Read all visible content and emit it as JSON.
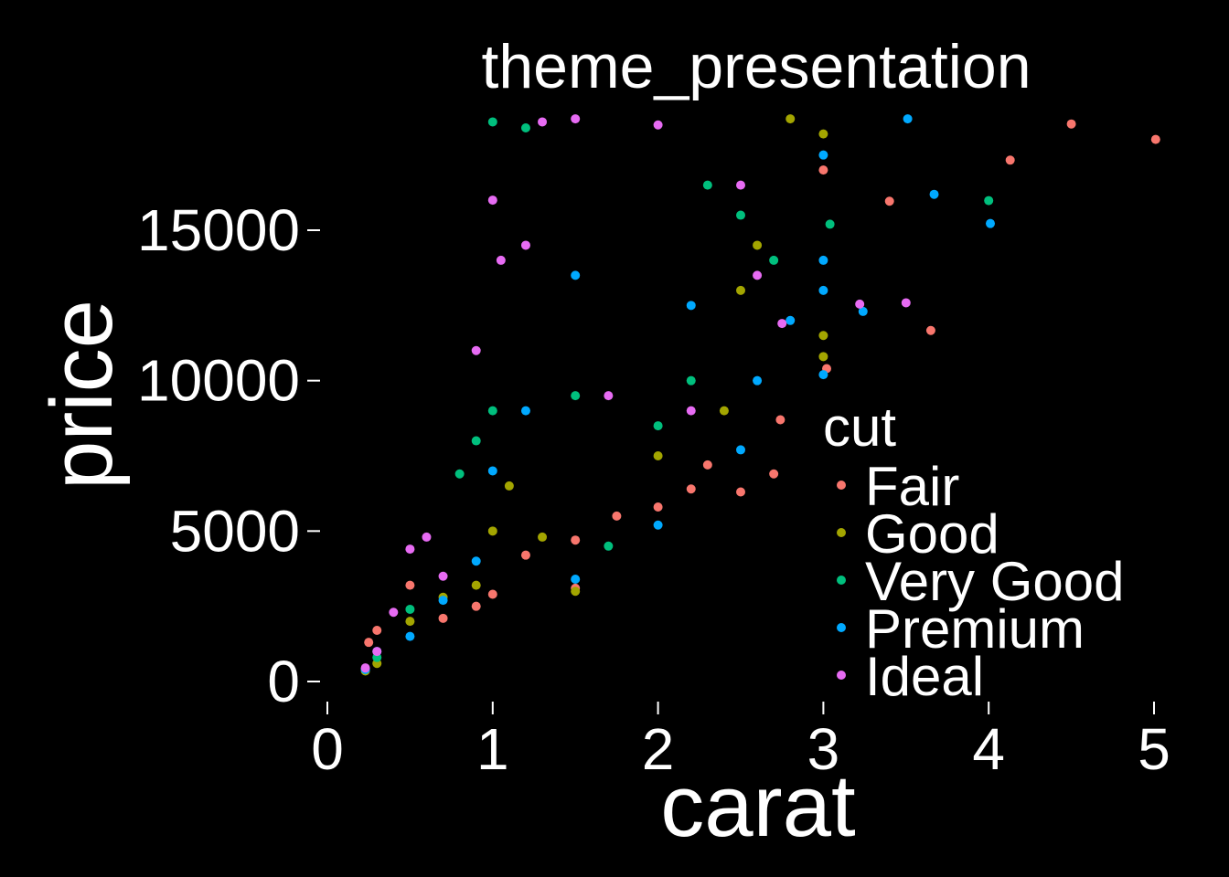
{
  "chart_data": {
    "type": "scatter",
    "title": "theme_presentation",
    "xlabel": "carat",
    "ylabel": "price",
    "xlim": [
      0,
      5.1
    ],
    "ylim": [
      0,
      19000
    ],
    "x_ticks": [
      0,
      1,
      2,
      3,
      4,
      5
    ],
    "x_tick_labels": [
      "0",
      "1",
      "2",
      "3",
      "4",
      "5"
    ],
    "y_ticks": [
      0,
      5000,
      10000,
      15000
    ],
    "y_tick_labels": [
      "0",
      "5000",
      "10000",
      "15000"
    ],
    "grid": false,
    "legend": {
      "title": "cut",
      "position": "right",
      "entries": [
        "Fair",
        "Good",
        "Very Good",
        "Premium",
        "Ideal"
      ]
    },
    "series": [
      {
        "name": "Fair",
        "color": "#F8766D",
        "points": [
          [
            5.01,
            18018
          ],
          [
            4.5,
            18531
          ],
          [
            4.13,
            17329
          ],
          [
            3.4,
            15964
          ],
          [
            3.65,
            11668
          ],
          [
            2.74,
            8700
          ],
          [
            2.7,
            6900
          ],
          [
            2.5,
            6300
          ],
          [
            2.3,
            7200
          ],
          [
            2.2,
            6400
          ],
          [
            2.0,
            5800
          ],
          [
            1.75,
            5500
          ],
          [
            1.5,
            4700
          ],
          [
            1.5,
            3100
          ],
          [
            1.2,
            4200
          ],
          [
            1.0,
            2900
          ],
          [
            0.9,
            2500
          ],
          [
            0.7,
            2100
          ],
          [
            0.5,
            3200
          ],
          [
            0.3,
            1700
          ],
          [
            0.25,
            1300
          ],
          [
            3.0,
            17000
          ],
          [
            3.02,
            10400
          ]
        ]
      },
      {
        "name": "Good",
        "color": "#A3A500",
        "points": [
          [
            2.8,
            18700
          ],
          [
            3.0,
            18200
          ],
          [
            3.0,
            11500
          ],
          [
            3.0,
            10800
          ],
          [
            2.6,
            14500
          ],
          [
            2.5,
            13000
          ],
          [
            2.0,
            7500
          ],
          [
            1.5,
            3000
          ],
          [
            1.3,
            4800
          ],
          [
            1.0,
            5000
          ],
          [
            0.9,
            3200
          ],
          [
            0.7,
            2800
          ],
          [
            0.5,
            2000
          ],
          [
            0.3,
            600
          ],
          [
            0.23,
            350
          ],
          [
            2.4,
            9000
          ],
          [
            1.1,
            6500
          ]
        ]
      },
      {
        "name": "Very Good",
        "color": "#00BF7D",
        "points": [
          [
            4.0,
            15984
          ],
          [
            3.04,
            15200
          ],
          [
            2.7,
            14000
          ],
          [
            2.5,
            15500
          ],
          [
            2.3,
            16500
          ],
          [
            1.0,
            18600
          ],
          [
            1.2,
            18400
          ],
          [
            0.9,
            8000
          ],
          [
            0.8,
            6900
          ],
          [
            1.0,
            9000
          ],
          [
            1.5,
            9500
          ],
          [
            2.0,
            8500
          ],
          [
            0.5,
            2400
          ],
          [
            0.3,
            800
          ],
          [
            0.23,
            400
          ],
          [
            1.7,
            4500
          ],
          [
            2.2,
            10000
          ]
        ]
      },
      {
        "name": "Premium",
        "color": "#00A9FF",
        "points": [
          [
            3.51,
            18701
          ],
          [
            4.01,
            15223
          ],
          [
            3.67,
            16193
          ],
          [
            3.24,
            12300
          ],
          [
            3.0,
            17500
          ],
          [
            3.0,
            14000
          ],
          [
            3.0,
            13000
          ],
          [
            3.0,
            10200
          ],
          [
            2.6,
            10000
          ],
          [
            2.5,
            7700
          ],
          [
            2.0,
            5200
          ],
          [
            1.5,
            3400
          ],
          [
            1.5,
            13500
          ],
          [
            1.2,
            9000
          ],
          [
            1.0,
            7000
          ],
          [
            0.9,
            4000
          ],
          [
            0.7,
            2700
          ],
          [
            0.5,
            1500
          ],
          [
            0.3,
            1000
          ],
          [
            0.23,
            400
          ],
          [
            2.8,
            12000
          ],
          [
            2.2,
            12500
          ]
        ]
      },
      {
        "name": "Ideal",
        "color": "#E76BF3",
        "points": [
          [
            3.5,
            12587
          ],
          [
            3.22,
            12545
          ],
          [
            2.75,
            11900
          ],
          [
            2.6,
            13500
          ],
          [
            2.5,
            16500
          ],
          [
            2.0,
            18500
          ],
          [
            1.5,
            18700
          ],
          [
            1.3,
            18600
          ],
          [
            1.0,
            16000
          ],
          [
            0.9,
            11000
          ],
          [
            0.7,
            3500
          ],
          [
            0.6,
            4800
          ],
          [
            0.5,
            4400
          ],
          [
            0.4,
            2300
          ],
          [
            0.3,
            1000
          ],
          [
            0.23,
            450
          ],
          [
            1.2,
            14500
          ],
          [
            1.05,
            14000
          ],
          [
            2.2,
            9000
          ],
          [
            1.7,
            9500
          ]
        ]
      }
    ]
  }
}
